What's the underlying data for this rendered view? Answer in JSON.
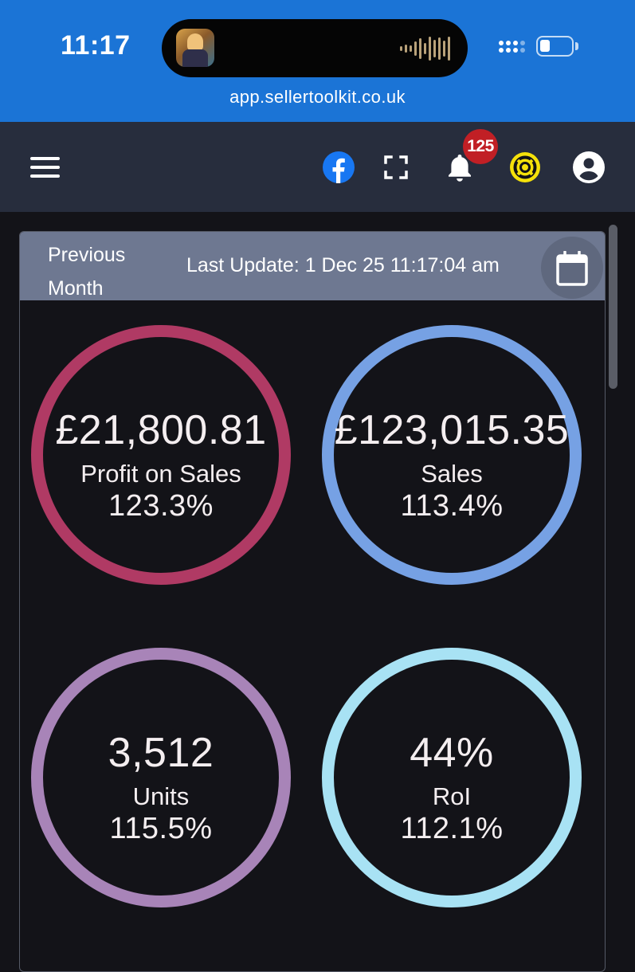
{
  "status_bar": {
    "time": "11:17",
    "url": "app.sellertoolkit.co.uk",
    "battery_level": 0.25
  },
  "navbar": {
    "icons": [
      "menu-icon",
      "facebook-icon",
      "fullscreen-icon",
      "bell-icon",
      "support-icon",
      "account-icon"
    ],
    "notification_count": "125",
    "colors": {
      "background": "#272d3d",
      "facebook": "#1877f2",
      "support": "#f5e10a",
      "badge": "#c11f25"
    }
  },
  "dashboard": {
    "period": "Previous Month",
    "last_update": "Last Update: 1 Dec 25 11:17:04 am",
    "metrics": [
      {
        "value": "£21,800.81",
        "label": "Profit on Sales",
        "change": "123.3%",
        "color": "#b03a64"
      },
      {
        "value": "£123,015.35",
        "label": "Sales",
        "change": "113.4%",
        "color": "#76a1e4"
      },
      {
        "value": "3,512",
        "label": "Units",
        "change": "115.5%",
        "color": "#a884b8"
      },
      {
        "value": "44%",
        "label": "RoI",
        "change": "112.1%",
        "color": "#a8e2f4"
      }
    ]
  }
}
